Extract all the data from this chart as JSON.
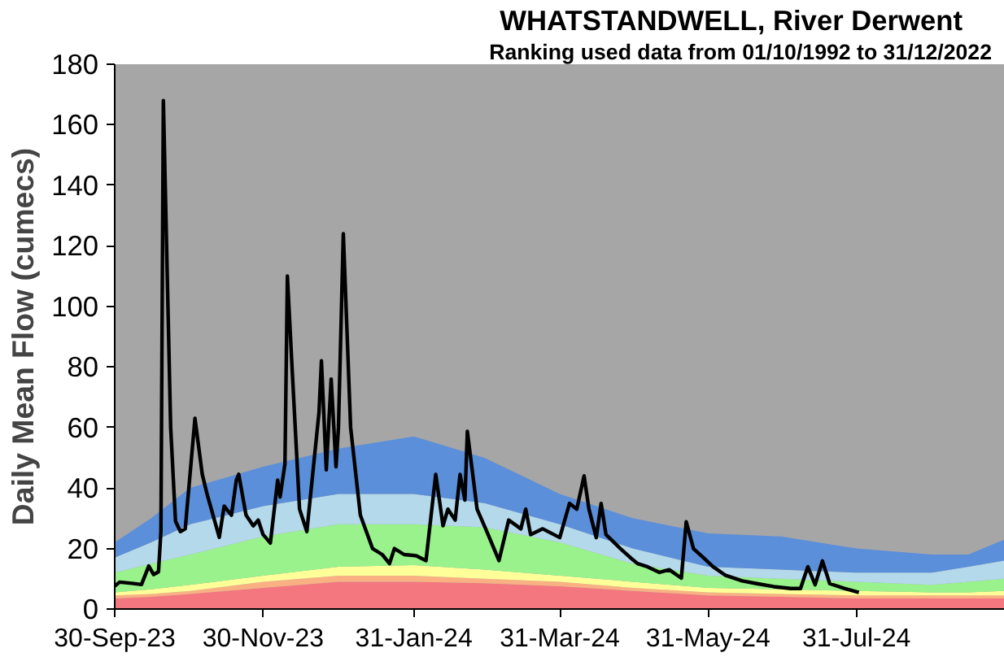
{
  "chart_data": {
    "type": "area",
    "stacked": true,
    "title": "WHATSTANDWELL, River Derwent",
    "subtitle": "Ranking used data from 01/10/1992 to 31/12/2022",
    "ylabel": "Daily Mean Flow (cumecs)",
    "x": [
      "2023-09-30",
      "2023-10-15",
      "2023-10-31",
      "2023-11-30",
      "2023-12-31",
      "2024-01-31",
      "2024-02-29",
      "2024-03-31",
      "2024-04-30",
      "2024-05-31",
      "2024-06-30",
      "2024-07-31",
      "2024-08-31",
      "2024-09-15",
      "2024-09-30"
    ],
    "series": [
      {
        "color": "#f4777f",
        "values": [
          3.5,
          4,
          5,
          7,
          9,
          9,
          8.5,
          7.5,
          6,
          4.5,
          4,
          3.5,
          3.5,
          3.5,
          3.5
        ]
      },
      {
        "color": "#f9b183",
        "values": [
          1,
          1,
          1,
          2,
          2,
          2,
          1.5,
          1.5,
          1,
          1,
          1,
          1,
          1,
          1,
          1
        ]
      },
      {
        "color": "#ffff99",
        "values": [
          1,
          1.5,
          2,
          2,
          3,
          3.5,
          3,
          2,
          2,
          1.5,
          1.5,
          1.5,
          1,
          1,
          1.5
        ]
      },
      {
        "color": "#99f28c",
        "values": [
          6.5,
          8.5,
          10,
          13,
          14,
          13.5,
          14,
          11,
          6,
          4,
          3.5,
          3,
          2.5,
          3.5,
          4
        ]
      },
      {
        "color": "#b4d9ea",
        "values": [
          5,
          7,
          10,
          10,
          10,
          10,
          8,
          6,
          5,
          3,
          3,
          3,
          4,
          5,
          6
        ]
      },
      {
        "color": "#5b8fd9",
        "values": [
          5,
          8,
          12,
          13,
          15,
          19,
          15,
          10,
          10,
          11,
          11,
          8,
          6,
          4,
          7
        ]
      },
      {
        "type": "line",
        "color": "#000000",
        "x": [
          "2023-09-30",
          "2023-10-02",
          "2023-10-07",
          "2023-10-11",
          "2023-10-14",
          "2023-10-16",
          "2023-10-18",
          "2023-10-19",
          "2023-10-20",
          "2023-10-23",
          "2023-10-25",
          "2023-10-27",
          "2023-10-29",
          "2023-11-02",
          "2023-11-05",
          "2023-11-07",
          "2023-11-10",
          "2023-11-12",
          "2023-11-14",
          "2023-11-17",
          "2023-11-19",
          "2023-11-20",
          "2023-11-23",
          "2023-11-26",
          "2023-11-28",
          "2023-11-30",
          "2023-12-03",
          "2023-12-06",
          "2023-12-07",
          "2023-12-09",
          "2023-12-10",
          "2023-12-12",
          "2023-12-15",
          "2023-12-18",
          "2023-12-23",
          "2023-12-24",
          "2023-12-26",
          "2023-12-28",
          "2023-12-30",
          "2023-12-31",
          "2024-01-02",
          "2024-01-05",
          "2024-01-09",
          "2024-01-14",
          "2024-01-18",
          "2024-01-21",
          "2024-01-23",
          "2024-01-27",
          "2024-02-01",
          "2024-02-05",
          "2024-02-09",
          "2024-02-12",
          "2024-02-14",
          "2024-02-17",
          "2024-02-19",
          "2024-02-21",
          "2024-02-22",
          "2024-02-26",
          "2024-03-01",
          "2024-03-06",
          "2024-03-10",
          "2024-03-15",
          "2024-03-17",
          "2024-03-19",
          "2024-03-24",
          "2024-03-31",
          "2024-04-04",
          "2024-04-07",
          "2024-04-10",
          "2024-04-12",
          "2024-04-15",
          "2024-04-17",
          "2024-04-19",
          "2024-04-25",
          "2024-04-29",
          "2024-05-02",
          "2024-05-06",
          "2024-05-11",
          "2024-05-15",
          "2024-05-20",
          "2024-05-22",
          "2024-05-25",
          "2024-05-29",
          "2024-06-02",
          "2024-06-07",
          "2024-06-14",
          "2024-06-20",
          "2024-06-27",
          "2024-07-04",
          "2024-07-08",
          "2024-07-11",
          "2024-07-14",
          "2024-07-17",
          "2024-07-20",
          "2024-07-26",
          "2024-08-01"
        ],
        "values": [
          7.6,
          8.9,
          8.5,
          8.1,
          14.2,
          11.4,
          12.3,
          25.6,
          168,
          60,
          29,
          25.6,
          26.5,
          63,
          44.5,
          37.9,
          29.4,
          23.7,
          34,
          31,
          42.6,
          44.5,
          31,
          27.5,
          29.4,
          24.6,
          21.8,
          42.6,
          37,
          48,
          110,
          78.6,
          33,
          25.6,
          65,
          82,
          46,
          76,
          47,
          60,
          124,
          60,
          31,
          20,
          18,
          15,
          20,
          18,
          17.6,
          16,
          44.5,
          27.5,
          33,
          29.4,
          44.5,
          36,
          58.7,
          33,
          25.6,
          16,
          29.4,
          26.5,
          33,
          24.6,
          26.5,
          23.6,
          34.9,
          33,
          44,
          33,
          23.6,
          34.9,
          24.6,
          19.9,
          17,
          15,
          14,
          12.1,
          13,
          10.2,
          28.8,
          19.9,
          17,
          14,
          11.2,
          9.3,
          8.4,
          7.4,
          6.8,
          6.8,
          14,
          8,
          15.9,
          8.4,
          6.8,
          5.5
        ]
      }
    ],
    "bands": [
      {
        "axis": "y",
        "from": 0,
        "to": 180,
        "color": "#a6a6a6"
      }
    ],
    "xlim": [
      "2023-09-30",
      "2024-09-30"
    ],
    "xticks": [
      {
        "value": "2023-09-30",
        "label": "30-Sep-23"
      },
      {
        "value": "2023-11-30",
        "label": "30-Nov-23"
      },
      {
        "value": "2024-01-31",
        "label": "31-Jan-24"
      },
      {
        "value": "2024-03-31",
        "label": "31-Mar-24"
      },
      {
        "value": "2024-05-31",
        "label": "31-May-24"
      },
      {
        "value": "2024-07-31",
        "label": "31-Jul-24"
      }
    ],
    "ylim": [
      0,
      180
    ],
    "yticks": [
      0,
      20,
      40,
      60,
      80,
      100,
      120,
      140,
      160,
      180
    ]
  }
}
